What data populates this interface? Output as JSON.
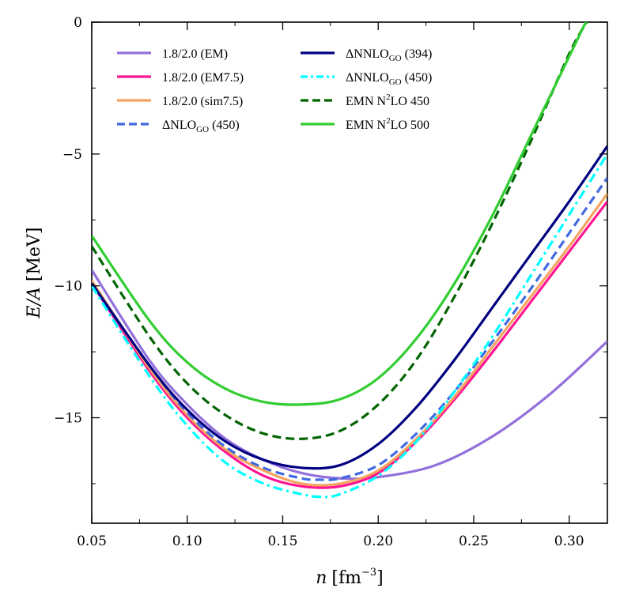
{
  "chart_data": {
    "type": "line",
    "title": "",
    "xlabel": "n [fm^-3]",
    "ylabel": "E/A [MeV]",
    "xlim": [
      0.05,
      0.32
    ],
    "ylim": [
      -19,
      0
    ],
    "xticks": [
      0.05,
      0.1,
      0.15,
      0.2,
      0.25,
      0.3
    ],
    "xtick_labels": [
      "0.05",
      "0.10",
      "0.15",
      "0.20",
      "0.25",
      "0.30"
    ],
    "yticks": [
      0,
      -5,
      -10,
      -15
    ],
    "ytick_labels": [
      "0",
      "−5",
      "−10",
      "−15"
    ],
    "xlabel_parts": {
      "var": "n",
      "unit": "[fm",
      "exp": "−3",
      "close": "]"
    },
    "ylabel_parts": {
      "var": "E/A",
      "unit": " [MeV]"
    },
    "legend_position": "top-left",
    "series": [
      {
        "name": "1.8/2.0 (EM)",
        "label_main": "1.8/2.0 (EM)",
        "label_sub": "",
        "label_sup": "",
        "label_tail": "",
        "color": "#9370DB",
        "dash": "solid",
        "x": [
          0.05,
          0.08,
          0.1,
          0.12,
          0.14,
          0.16,
          0.18,
          0.2,
          0.23,
          0.26,
          0.29,
          0.32
        ],
        "y": [
          -9.4,
          -12.8,
          -14.5,
          -15.8,
          -16.6,
          -17.1,
          -17.3,
          -17.25,
          -16.8,
          -15.7,
          -14.1,
          -12.1
        ]
      },
      {
        "name": "1.8/2.0 (EM7.5)",
        "label_main": "1.8/2.0 (EM7.5)",
        "label_sub": "",
        "label_sup": "",
        "label_tail": "",
        "color": "#FF1493",
        "dash": "solid",
        "x": [
          0.05,
          0.08,
          0.1,
          0.12,
          0.14,
          0.16,
          0.18,
          0.2,
          0.22,
          0.24,
          0.26,
          0.28,
          0.3,
          0.32
        ],
        "y": [
          -9.9,
          -13.2,
          -15.0,
          -16.3,
          -17.2,
          -17.6,
          -17.6,
          -17.1,
          -15.9,
          -14.3,
          -12.5,
          -10.6,
          -8.7,
          -6.8
        ]
      },
      {
        "name": "1.8/2.0 (sim7.5)",
        "label_main": "1.8/2.0 (sim7.5)",
        "label_sub": "",
        "label_sup": "",
        "label_tail": "",
        "color": "#F4A460",
        "dash": "solid",
        "x": [
          0.05,
          0.08,
          0.1,
          0.12,
          0.14,
          0.16,
          0.18,
          0.2,
          0.22,
          0.24,
          0.26,
          0.28,
          0.3,
          0.32
        ],
        "y": [
          -9.8,
          -13.1,
          -14.9,
          -16.2,
          -17.0,
          -17.5,
          -17.5,
          -17.0,
          -15.8,
          -14.2,
          -12.3,
          -10.4,
          -8.5,
          -6.5
        ]
      },
      {
        "name": "ΔNLO_GO (450)",
        "label_main": "ΔNLO",
        "label_sub": "GO",
        "label_sup": "",
        "label_tail": " (450)",
        "color": "#4169E1",
        "dash": "dashed",
        "x": [
          0.05,
          0.08,
          0.1,
          0.12,
          0.14,
          0.16,
          0.17,
          0.18,
          0.2,
          0.22,
          0.24,
          0.26,
          0.28,
          0.3,
          0.32
        ],
        "y": [
          -9.9,
          -13.0,
          -14.8,
          -16.1,
          -16.9,
          -17.3,
          -17.35,
          -17.3,
          -16.8,
          -15.6,
          -14.0,
          -12.1,
          -10.1,
          -8.0,
          -5.9
        ]
      },
      {
        "name": "ΔNNLO_GO (394)",
        "label_main": "ΔNNLO",
        "label_sub": "GO",
        "label_sup": "",
        "label_tail": " (394)",
        "color": "#000080",
        "dash": "solid",
        "x": [
          0.05,
          0.08,
          0.1,
          0.12,
          0.14,
          0.16,
          0.18,
          0.2,
          0.22,
          0.24,
          0.26,
          0.28,
          0.3,
          0.32
        ],
        "y": [
          -9.9,
          -13.0,
          -14.7,
          -15.9,
          -16.6,
          -16.9,
          -16.8,
          -16.0,
          -14.6,
          -12.8,
          -10.8,
          -8.8,
          -6.8,
          -4.7
        ]
      },
      {
        "name": "ΔNNLO_GO (450)",
        "label_main": "ΔNNLO",
        "label_sub": "GO",
        "label_sup": "",
        "label_tail": " (450)",
        "color": "#00FFFF",
        "dash": "dashdot",
        "x": [
          0.05,
          0.08,
          0.1,
          0.12,
          0.14,
          0.16,
          0.17,
          0.18,
          0.2,
          0.22,
          0.24,
          0.26,
          0.28,
          0.3,
          0.32
        ],
        "y": [
          -10.0,
          -13.4,
          -15.3,
          -16.7,
          -17.5,
          -17.9,
          -18.0,
          -17.9,
          -17.2,
          -15.9,
          -14.0,
          -11.9,
          -9.6,
          -7.3,
          -5.0
        ]
      },
      {
        "name": "EMN N2LO 450",
        "label_main": "EMN N",
        "label_sub": "",
        "label_sup": "2",
        "label_tail": "LO 450",
        "color": "#006400",
        "dash": "dashed",
        "x": [
          0.05,
          0.08,
          0.1,
          0.12,
          0.14,
          0.16,
          0.18,
          0.2,
          0.22,
          0.24,
          0.26,
          0.28,
          0.3,
          0.31
        ],
        "y": [
          -8.5,
          -11.9,
          -13.7,
          -14.9,
          -15.6,
          -15.8,
          -15.5,
          -14.5,
          -12.8,
          -10.4,
          -7.6,
          -4.5,
          -1.2,
          0.1
        ]
      },
      {
        "name": "EMN N2LO 500",
        "label_main": "EMN N",
        "label_sub": "",
        "label_sup": "2",
        "label_tail": "LO 500",
        "color": "#32CD32",
        "dash": "solid",
        "x": [
          0.05,
          0.08,
          0.1,
          0.12,
          0.14,
          0.16,
          0.18,
          0.2,
          0.22,
          0.24,
          0.26,
          0.28,
          0.3,
          0.31
        ],
        "y": [
          -8.1,
          -11.3,
          -12.9,
          -13.9,
          -14.4,
          -14.5,
          -14.3,
          -13.5,
          -12.0,
          -9.9,
          -7.3,
          -4.3,
          -1.3,
          0.2
        ]
      }
    ]
  }
}
